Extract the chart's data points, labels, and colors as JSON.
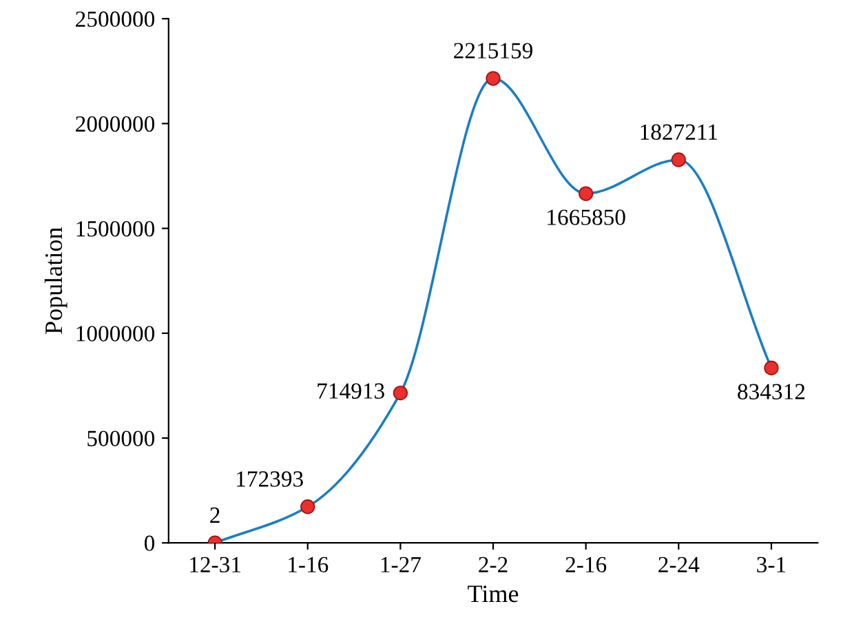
{
  "chart_data": {
    "type": "line",
    "xlabel": "Time",
    "ylabel": "Population",
    "categories": [
      "12-31",
      "1-16",
      "1-27",
      "2-2",
      "2-16",
      "2-24",
      "3-1"
    ],
    "series": [
      {
        "color": "#1b7ec2",
        "colors": [
          "#e8302c",
          "#e8302c",
          "#e8302c",
          "#e8302c",
          "#e8302c",
          "#e8302c",
          "#e8302c"
        ],
        "values": [
          2,
          172393,
          714913,
          2215159,
          1665850,
          1827211,
          834312
        ]
      }
    ],
    "ylim": [
      0,
      2500000
    ],
    "yticks": [
      0,
      500000,
      1000000,
      1500000,
      2000000,
      2500000
    ],
    "marker": "circle",
    "data_labels": true,
    "grid": false
  }
}
